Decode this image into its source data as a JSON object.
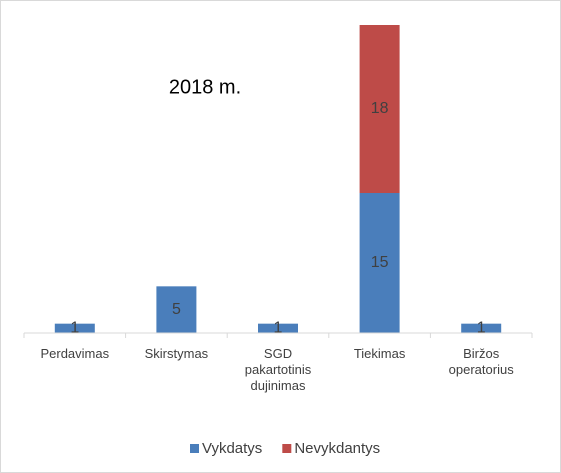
{
  "chart_data": {
    "type": "stacked_bar",
    "title": "2018 m.",
    "categories": [
      "Perdavimas",
      "Skirstymas",
      "SGD pakartotinis dujinimas",
      "Tiekimas",
      "Biržos operatorius"
    ],
    "series": [
      {
        "name": "Vykdatys",
        "color": "#4a7ebb",
        "values": [
          1,
          5,
          1,
          15,
          1
        ]
      },
      {
        "name": "Nevykdantys",
        "color": "#be4b48",
        "values": [
          null,
          null,
          null,
          18,
          null
        ]
      }
    ],
    "ylim": [
      0,
      33
    ],
    "legend": "bottom"
  }
}
